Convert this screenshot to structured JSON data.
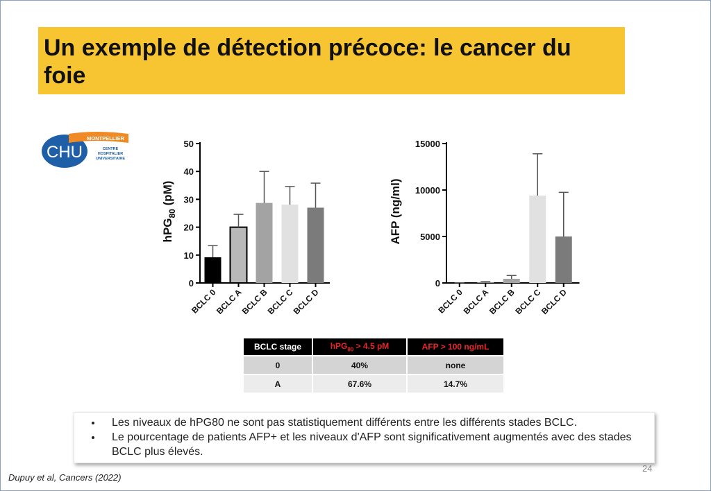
{
  "slide": {
    "title": "Un exemple de détection précoce: le cancer du foie",
    "citation": "Dupuy et al, Cancers (2022)",
    "page_number": "24"
  },
  "logo": {
    "text_chu": "CHU",
    "text_city": "MONTPELLIER",
    "text_line1": "CENTRE",
    "text_line2": "HOSPITALIER",
    "text_line3": "UNIVERSITAIRE",
    "colors": {
      "blue": "#1f5fa8",
      "orange": "#f08a24"
    }
  },
  "chart_data": [
    {
      "type": "bar",
      "categories": [
        "BCLC 0",
        "BCLC A",
        "BCLC B",
        "BCLC C",
        "BCLC D"
      ],
      "values": [
        9.2,
        20,
        28.7,
        28.1,
        27
      ],
      "errors": [
        4.2,
        4.6,
        11.3,
        6.5,
        8.8
      ],
      "ylabel_main": "hPG",
      "ylabel_sub": "80",
      "ylabel_unit": " (pM)",
      "ylim": [
        0,
        50
      ],
      "yticks": [
        0,
        10,
        20,
        30,
        40,
        50
      ],
      "colors": [
        "#000000",
        "#b9b9b9",
        "#a3a3a3",
        "#e1e1e1",
        "#7b7b7b"
      ],
      "outlined": [
        false,
        true,
        false,
        false,
        false
      ]
    },
    {
      "type": "bar",
      "categories": [
        "BCLC 0",
        "BCLC A",
        "BCLC B",
        "BCLC C",
        "BCLC D"
      ],
      "values": [
        10,
        60,
        450,
        9400,
        5000
      ],
      "errors": [
        10,
        80,
        350,
        4500,
        4750
      ],
      "ylabel": "AFP (ng/ml)",
      "ylim": [
        0,
        15000
      ],
      "yticks": [
        0,
        5000,
        10000,
        15000
      ],
      "colors": [
        "#222222",
        "#a3a3a3",
        "#a3a3a3",
        "#e1e1e1",
        "#7b7b7b"
      ],
      "outlined": [
        false,
        false,
        false,
        false,
        false
      ]
    }
  ],
  "table": {
    "header_stage": "BCLC stage",
    "header_hpg_main": "hPG",
    "header_hpg_sub": "80",
    "header_hpg_rest": " > 4.5 pM",
    "header_afp": "AFP > 100 ng/mL",
    "rows": [
      {
        "stage": "0",
        "hpg": "40%",
        "afp": "none"
      },
      {
        "stage": "A",
        "hpg": "67.6%",
        "afp": "14.7%"
      }
    ]
  },
  "notes": [
    "Les niveaux de hPG80 ne sont pas statistiquement différents entre les différents stades BCLC.",
    "Le pourcentage de patients AFP+ et les niveaux d'AFP sont significativement augmentés avec des stades BCLC plus élevés."
  ]
}
